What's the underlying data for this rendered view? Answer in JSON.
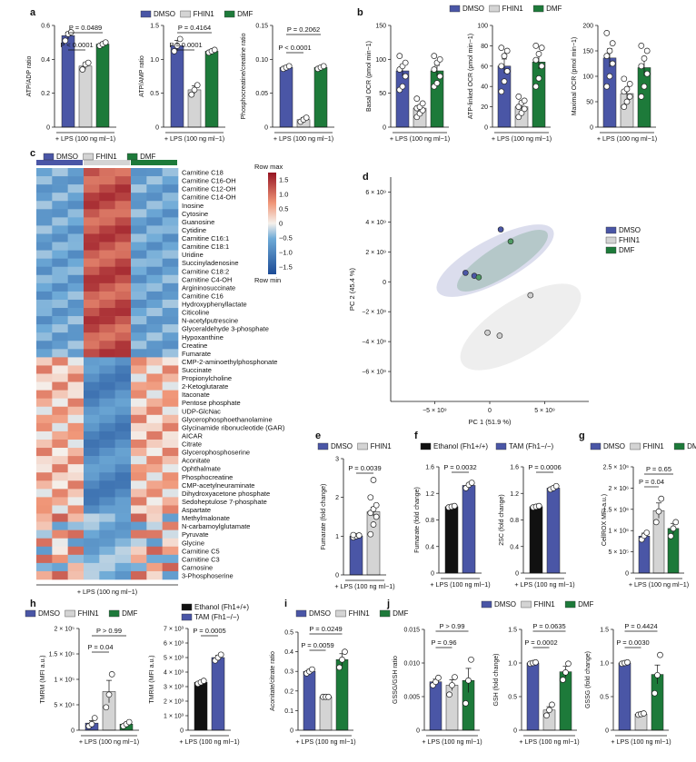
{
  "panel_letters": {
    "a": "a",
    "b": "b",
    "c": "c",
    "d": "d",
    "e": "e",
    "f": "f",
    "g": "g",
    "h": "h",
    "i": "i",
    "j": "j"
  },
  "colors": {
    "dmso": "#4a56a6",
    "fhin1": "#d4d4d4",
    "dmf": "#1d7a3a",
    "ethanol": "#111111",
    "tam": "#4a56a6"
  },
  "legends": {
    "a": [
      "DMSO",
      "FHIN1",
      "DMF"
    ],
    "b": [
      "DMSO",
      "FHIN1",
      "DMF"
    ],
    "c": [
      "DMSO",
      "FHIN1",
      "DMF"
    ],
    "d": [
      "DMSO",
      "FHIN1",
      "DMF"
    ],
    "e": [
      "DMSO",
      "FHIN1"
    ],
    "f": [
      "Ethanol (Fh1+/+)",
      "TAM (Fh1−/−)"
    ],
    "g": [
      "DMSO",
      "FHIN1",
      "DMF"
    ],
    "h": [
      "DMSO",
      "FHIN1",
      "DMF"
    ],
    "h2": [
      "Ethanol (Fh1+/+)",
      "TAM (Fh1−/−)"
    ],
    "i": [
      "DMSO",
      "FHIN1",
      "DMF"
    ],
    "j": [
      "DMSO",
      "FHIN1",
      "DMF"
    ]
  },
  "xlabel": "+ LPS (100 ng ml−1)",
  "chart_data": [
    {
      "type": "bar",
      "panel": "a",
      "ylabel": "ATP/ADP ratio",
      "ylim": [
        0,
        0.6
      ],
      "yticks": [
        "0",
        "0.2",
        "0.4",
        "0.6"
      ],
      "categories": [
        "DMSO",
        "FHIN1",
        "DMF"
      ],
      "values": [
        0.54,
        0.36,
        0.49
      ],
      "errors": [
        0.02,
        0.02,
        0.01
      ],
      "points": [
        [
          0.51,
          0.55,
          0.56
        ],
        [
          0.34,
          0.37,
          0.38
        ],
        [
          0.48,
          0.49,
          0.5
        ]
      ],
      "annotations": [
        "P = 0.0489",
        "P < 0.0001"
      ]
    },
    {
      "type": "bar",
      "panel": "a",
      "ylabel": "ATP/AMP ratio",
      "ylim": [
        0,
        1.5
      ],
      "yticks": [
        "0",
        "0.5",
        "1.0",
        "1.5"
      ],
      "categories": [
        "DMSO",
        "FHIN1",
        "DMF"
      ],
      "values": [
        1.2,
        0.55,
        1.12
      ],
      "errors": [
        0.08,
        0.06,
        0.02
      ],
      "points": [
        [
          1.12,
          1.2,
          1.3
        ],
        [
          0.48,
          0.55,
          0.62
        ],
        [
          1.1,
          1.12,
          1.14
        ]
      ],
      "annotations": [
        "P = 0.4164",
        "P = 0.0001"
      ]
    },
    {
      "type": "bar",
      "panel": "a",
      "ylabel": "Phosphocreatine/creatine ratio",
      "ylim": [
        0,
        0.15
      ],
      "yticks": [
        "0",
        "0.05",
        "0.10",
        "0.15"
      ],
      "categories": [
        "DMSO",
        "FHIN1",
        "DMF"
      ],
      "values": [
        0.088,
        0.011,
        0.088
      ],
      "errors": [
        0.002,
        0.003,
        0.002
      ],
      "points": [
        [
          0.086,
          0.088,
          0.09
        ],
        [
          0.008,
          0.011,
          0.014
        ],
        [
          0.086,
          0.088,
          0.09
        ]
      ],
      "annotations": [
        "P = 0.2062",
        "P < 0.0001"
      ]
    },
    {
      "type": "bar",
      "panel": "b",
      "ylabel": "Basal OCR (pmol min−1)",
      "ylim": [
        0,
        150
      ],
      "yticks": [
        "0",
        "50",
        "100",
        "150"
      ],
      "categories": [
        "DMSO",
        "FHIN1",
        "DMF"
      ],
      "values": [
        83,
        28,
        83
      ],
      "errors": [
        8,
        4,
        8
      ],
      "points": [
        [
          55,
          60,
          75,
          85,
          90,
          95,
          105
        ],
        [
          15,
          20,
          25,
          28,
          30,
          35,
          42
        ],
        [
          60,
          65,
          75,
          85,
          95,
          100,
          105
        ]
      ],
      "annotations": []
    },
    {
      "type": "bar",
      "panel": "b",
      "ylabel": "ATP-linked OCR (pmol min−1)",
      "ylim": [
        0,
        100
      ],
      "yticks": [
        "0",
        "20",
        "40",
        "60",
        "80",
        "100"
      ],
      "categories": [
        "DMSO",
        "FHIN1",
        "DMF"
      ],
      "values": [
        60,
        20,
        64
      ],
      "errors": [
        7,
        3,
        7
      ],
      "points": [
        [
          35,
          45,
          55,
          60,
          70,
          75,
          78
        ],
        [
          10,
          14,
          18,
          20,
          24,
          26,
          30
        ],
        [
          40,
          48,
          60,
          66,
          72,
          78,
          80
        ]
      ],
      "annotations": []
    },
    {
      "type": "bar",
      "panel": "b",
      "ylabel": "Maximal OCR (pmol min−1)",
      "ylim": [
        0,
        200
      ],
      "yticks": [
        "0",
        "50",
        "100",
        "150",
        "200"
      ],
      "categories": [
        "DMSO",
        "FHIN1",
        "DMF"
      ],
      "values": [
        136,
        66,
        117
      ],
      "errors": [
        18,
        10,
        16
      ],
      "points": [
        [
          80,
          100,
          125,
          140,
          150,
          165,
          185
        ],
        [
          40,
          50,
          60,
          70,
          75,
          85,
          95
        ],
        [
          60,
          80,
          105,
          120,
          135,
          150,
          160
        ]
      ],
      "annotations": []
    },
    {
      "type": "heatmap",
      "panel": "c",
      "title": "",
      "groups": [
        "DMSO",
        "FHIN1",
        "DMF"
      ],
      "colorbar_title": "Row max",
      "colorbar_bottom": "Row min",
      "colorbar_ticks": [
        "1.5",
        "1.0",
        "0.5",
        "0",
        "−0.5",
        "−1.0",
        "−1.5"
      ],
      "xlabel": "+ LPS (100 ng ml−1)",
      "rows": [
        "Carnitine C18",
        "Carnitine C16-OH",
        "Carnitine C12-OH",
        "Carnitine C14-OH",
        "Inosine",
        "Cytosine",
        "Guanosine",
        "Cytidine",
        "Carnitine C16:1",
        "Carnitine C18:1",
        "Uridine",
        "Succinyladenosine",
        "Carnitine C18:2",
        "Carnitine C4-OH",
        "Argininosuccinate",
        "Carnitine C16",
        "Hydroxyphenyllactate",
        "Citicoline",
        "N-acetylputrescine",
        "Glyceraldehyde 3-phosphate",
        "Hypoxanthine",
        "Creatine",
        "Fumarate",
        "CMP-2-aminoethylphosphonate",
        "Succinate",
        "Propionylcholine",
        "2-Ketoglutarate",
        "Itaconate",
        "Pentose phosphate",
        "UDP-GlcNac",
        "Glycerophosphoethanolamine",
        "Glycinamide ribonucleotide (GAR)",
        "AICAR",
        "Citrate",
        "Glycerophosphoserine",
        "Aconitate",
        "Ophthalmate",
        "Phosphocreatine",
        "CMP-acetylneuraminate",
        "Dihydroxyacetone phosphate",
        "Sedoheptulose 7-phosphate",
        "Aspartate",
        "Methylmalonate",
        "N-carbamoylglutamate",
        "Pyruvate",
        "Glycine",
        "Carnitine C5",
        "Carnitine C3",
        "Carnosine",
        "3-Phosphoserine"
      ]
    },
    {
      "type": "scatter",
      "panel": "d",
      "xlabel": "PC 1 (51.9 %)",
      "ylabel": "PC 2 (45.4 %)",
      "xlim": [
        -9000000000.0,
        9000000000.0
      ],
      "ylim": [
        -8000000000.0,
        7000000000.0
      ],
      "xticks": [
        "−5 × 10⁹",
        "0",
        "5 × 10⁹"
      ],
      "yticks": [
        "6 × 10⁹",
        "4 × 10⁹",
        "2 × 10⁹",
        "0",
        "−2 × 10⁹",
        "−4 × 10⁹",
        "−6 × 10⁹"
      ],
      "series": [
        {
          "name": "DMSO",
          "x": [
            1000000000.0,
            -2200000000.0,
            -1400000000.0
          ],
          "y": [
            3500000000.0,
            600000000.0,
            400000000.0
          ]
        },
        {
          "name": "FHIN1",
          "x": [
            3700000000.0,
            -200000000.0,
            900000000.0
          ],
          "y": [
            -900000000.0,
            -3400000000.0,
            -3600000000.0
          ]
        },
        {
          "name": "DMF",
          "x": [
            1900000000.0,
            -1000000000.0
          ],
          "y": [
            2700000000.0,
            300000000.0
          ]
        }
      ]
    },
    {
      "type": "bar",
      "panel": "e",
      "ylabel": "Fumarate (fold change)",
      "ylim": [
        0,
        3
      ],
      "yticks": [
        "0",
        "1",
        "2",
        "3"
      ],
      "categories": [
        "DMSO",
        "FHIN1"
      ],
      "values": [
        1.0,
        1.63
      ],
      "errors": [
        0.03,
        0.12
      ],
      "points": [
        [
          0.97,
          1.0,
          1.02,
          1.03
        ],
        [
          1.05,
          1.3,
          1.5,
          1.6,
          1.7,
          1.8,
          2.0,
          2.45
        ]
      ],
      "annotations": [
        "P = 0.0039"
      ]
    },
    {
      "type": "bar",
      "panel": "f",
      "ylabel": "Fumarate (fold change)",
      "ylim": [
        0,
        1.6
      ],
      "yticks": [
        "0",
        "0.4",
        "0.8",
        "1.2",
        "1.6"
      ],
      "categories": [
        "Ethanol (Fh1+/+)",
        "TAM (Fh1−/−)"
      ],
      "values": [
        1.0,
        1.32
      ],
      "errors": [
        0.01,
        0.03
      ],
      "points": [
        [
          0.99,
          1.0,
          1.01
        ],
        [
          1.28,
          1.33,
          1.36
        ]
      ],
      "annotations": [
        "P = 0.0032"
      ]
    },
    {
      "type": "bar",
      "panel": "f",
      "ylabel": "2SC (fold change)",
      "ylim": [
        0,
        1.6
      ],
      "yticks": [
        "0",
        "0.4",
        "0.8",
        "1.2",
        "1.6"
      ],
      "categories": [
        "Ethanol (Fh1+/+)",
        "TAM (Fh1−/−)"
      ],
      "values": [
        1.0,
        1.28
      ],
      "errors": [
        0.01,
        0.02
      ],
      "points": [
        [
          0.99,
          1.0,
          1.01
        ],
        [
          1.26,
          1.28,
          1.31
        ]
      ],
      "annotations": [
        "P = 0.0006"
      ]
    },
    {
      "type": "bar",
      "panel": "g",
      "ylabel": "CellROX MFI a.u.)",
      "ylim": [
        0,
        2500000
      ],
      "yticks": [
        "0",
        "5 × 10⁵",
        "1 × 10⁶",
        "1.5 × 10⁶",
        "2 × 10⁶",
        "2.5 × 10⁶"
      ],
      "categories": [
        "DMSO",
        "FHIN1",
        "DMF"
      ],
      "values": [
        870000,
        1470000,
        1050000
      ],
      "errors": [
        70000,
        180000,
        120000
      ],
      "points": [
        [
          790000,
          880000,
          950000
        ],
        [
          1200000,
          1450000,
          1750000
        ],
        [
          870000,
          1050000,
          1200000
        ]
      ],
      "annotations": [
        "P = 0.65",
        "P = 0.04"
      ]
    },
    {
      "type": "bar",
      "panel": "h",
      "ylabel": "TMRM (MFI a.u.)",
      "ylim": [
        0,
        200000
      ],
      "yticks": [
        "0",
        "5 × 10⁴",
        "1 × 10⁵",
        "1.5 × 10⁵",
        "2 × 10⁵"
      ],
      "categories": [
        "DMSO",
        "FHIN1",
        "DMF"
      ],
      "values": [
        14000,
        76000,
        12000
      ],
      "errors": [
        5000,
        22000,
        3000
      ],
      "points": [
        [
          8000,
          12000,
          24000
        ],
        [
          45000,
          70000,
          110000
        ],
        [
          8000,
          12000,
          16000
        ]
      ],
      "annotations": [
        "P > 0.99",
        "P = 0.04"
      ]
    },
    {
      "type": "bar",
      "panel": "h",
      "ylabel": "TMRM (MFI a.u.)",
      "ylim": [
        0,
        7000
      ],
      "yticks": [
        "0",
        "1 × 10³",
        "2 × 10³",
        "3 × 10³",
        "4 × 10³",
        "5 × 10³",
        "6 × 10³",
        "7 × 10³"
      ],
      "categories": [
        "Ethanol (Fh1+/+)",
        "TAM (Fh1−/−)"
      ],
      "values": [
        3300,
        5000
      ],
      "errors": [
        80,
        150
      ],
      "points": [
        [
          3200,
          3300,
          3400
        ],
        [
          4800,
          5000,
          5200
        ]
      ],
      "annotations": [
        "P = 0.0005"
      ]
    },
    {
      "type": "bar",
      "panel": "i",
      "ylabel": "Aconitate/citrate ratio",
      "ylim": [
        0,
        0.5
      ],
      "yticks": [
        "0",
        "0.1",
        "0.2",
        "0.3",
        "0.4",
        "0.5"
      ],
      "categories": [
        "DMSO",
        "FHIN1",
        "DMF"
      ],
      "values": [
        0.3,
        0.17,
        0.36
      ],
      "errors": [
        0.01,
        0.01,
        0.03
      ],
      "points": [
        [
          0.29,
          0.3,
          0.31
        ],
        [
          0.17,
          0.17,
          0.17
        ],
        [
          0.32,
          0.36,
          0.4
        ]
      ],
      "annotations": [
        "P = 0.0249",
        "P = 0.0059"
      ]
    },
    {
      "type": "bar",
      "panel": "j",
      "ylabel": "GSSG/GSH ratio",
      "ylim": [
        0,
        0.015
      ],
      "yticks": [
        "0",
        "0.005",
        "0.010",
        "0.015"
      ],
      "categories": [
        "DMSO",
        "FHIN1",
        "DMF"
      ],
      "values": [
        0.0072,
        0.0067,
        0.0074
      ],
      "errors": [
        0.0004,
        0.0008,
        0.0018
      ],
      "points": [
        [
          0.0067,
          0.0072,
          0.0078
        ],
        [
          0.0053,
          0.0067,
          0.0079
        ],
        [
          0.004,
          0.0074,
          0.0105
        ]
      ],
      "annotations": [
        "P > 0.99",
        "P = 0.96"
      ]
    },
    {
      "type": "bar",
      "panel": "j",
      "ylabel": "GSH (fold change)",
      "ylim": [
        0,
        1.5
      ],
      "yticks": [
        "0",
        "0.5",
        "1.0",
        "1.5"
      ],
      "categories": [
        "DMSO",
        "FHIN1",
        "DMF"
      ],
      "values": [
        1.0,
        0.3,
        0.87
      ],
      "errors": [
        0.01,
        0.05,
        0.08
      ],
      "points": [
        [
          0.99,
          1.0,
          1.01
        ],
        [
          0.22,
          0.3,
          0.38
        ],
        [
          0.75,
          0.86,
          0.99
        ]
      ],
      "annotations": [
        "P = 0.0635",
        "P = 0.0002"
      ]
    },
    {
      "type": "bar",
      "panel": "j",
      "ylabel": "GSSG (fold change)",
      "ylim": [
        0,
        1.5
      ],
      "yticks": [
        "0",
        "0.5",
        "1.0",
        "1.5"
      ],
      "categories": [
        "DMSO",
        "FHIN1",
        "DMF"
      ],
      "values": [
        1.0,
        0.24,
        0.83
      ],
      "errors": [
        0.01,
        0.01,
        0.14
      ],
      "points": [
        [
          0.99,
          1.0,
          1.01
        ],
        [
          0.23,
          0.24,
          0.25
        ],
        [
          0.55,
          0.82,
          1.12
        ]
      ],
      "annotations": [
        "P = 0.4424",
        "P = 0.0030"
      ]
    }
  ]
}
